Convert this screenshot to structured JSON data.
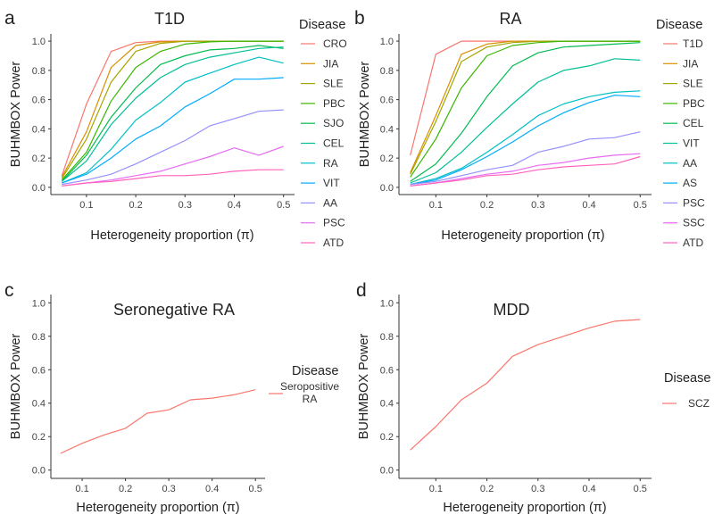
{
  "chart_data": [
    {
      "panel_letter": "a",
      "type": "line",
      "title": "T1D",
      "xlabel": "Heterogeneity proportion (π)",
      "ylabel": "BUHMBOX Power",
      "legend_title": "Disease",
      "legend_position": "right",
      "grid": false,
      "xlim": [
        0.05,
        0.5
      ],
      "ylim": [
        0,
        1
      ],
      "x_ticks": [
        "0.1",
        "0.2",
        "0.3",
        "0.4",
        "0.5"
      ],
      "y_ticks": [
        "0.0",
        "0.2",
        "0.4",
        "0.6",
        "0.8",
        "1.0"
      ],
      "x": [
        0.05,
        0.1,
        0.15,
        0.2,
        0.25,
        0.3,
        0.35,
        0.4,
        0.45,
        0.5
      ],
      "series": [
        {
          "name": "CRO",
          "color": "#F8766D",
          "values": [
            0.08,
            0.57,
            0.93,
            0.99,
            1.0,
            1.0,
            1.0,
            1.0,
            1.0,
            1.0
          ]
        },
        {
          "name": "JIA",
          "color": "#D89000",
          "values": [
            0.07,
            0.38,
            0.82,
            0.97,
            0.995,
            1.0,
            1.0,
            1.0,
            1.0,
            1.0
          ]
        },
        {
          "name": "SLE",
          "color": "#A3A500",
          "values": [
            0.06,
            0.33,
            0.72,
            0.93,
            0.985,
            1.0,
            1.0,
            1.0,
            1.0,
            1.0
          ]
        },
        {
          "name": "PBC",
          "color": "#39B600",
          "values": [
            0.05,
            0.24,
            0.59,
            0.82,
            0.93,
            0.98,
            0.995,
            1.0,
            1.0,
            1.0
          ]
        },
        {
          "name": "SJO",
          "color": "#00BB4E",
          "values": [
            0.04,
            0.22,
            0.48,
            0.68,
            0.84,
            0.9,
            0.94,
            0.95,
            0.97,
            0.95
          ]
        },
        {
          "name": "CEL",
          "color": "#00BF96",
          "values": [
            0.04,
            0.18,
            0.43,
            0.61,
            0.75,
            0.84,
            0.89,
            0.92,
            0.95,
            0.96
          ]
        },
        {
          "name": "RA",
          "color": "#00BFC4",
          "values": [
            0.03,
            0.1,
            0.26,
            0.46,
            0.58,
            0.72,
            0.78,
            0.84,
            0.89,
            0.85
          ]
        },
        {
          "name": "VIT",
          "color": "#00ABFD",
          "values": [
            0.03,
            0.09,
            0.2,
            0.33,
            0.42,
            0.55,
            0.64,
            0.74,
            0.74,
            0.75
          ]
        },
        {
          "name": "AA",
          "color": "#9590FF",
          "values": [
            0.02,
            0.05,
            0.09,
            0.16,
            0.24,
            0.32,
            0.42,
            0.47,
            0.52,
            0.53
          ]
        },
        {
          "name": "PSC",
          "color": "#E76BF3",
          "values": [
            0.01,
            0.03,
            0.05,
            0.08,
            0.11,
            0.16,
            0.21,
            0.27,
            0.22,
            0.28
          ]
        },
        {
          "name": "ATD",
          "color": "#FF62BC",
          "values": [
            0.01,
            0.03,
            0.04,
            0.06,
            0.08,
            0.08,
            0.09,
            0.11,
            0.12,
            0.12
          ]
        }
      ]
    },
    {
      "panel_letter": "b",
      "type": "line",
      "title": "RA",
      "xlabel": "Heterogeneity proportion (π)",
      "ylabel": "BUHMBOX Power",
      "legend_title": "Disease",
      "legend_position": "right",
      "grid": false,
      "xlim": [
        0.05,
        0.5
      ],
      "ylim": [
        0,
        1
      ],
      "x_ticks": [
        "0.1",
        "0.2",
        "0.3",
        "0.4",
        "0.5"
      ],
      "y_ticks": [
        "0.0",
        "0.2",
        "0.4",
        "0.6",
        "0.8",
        "1.0"
      ],
      "x": [
        0.05,
        0.1,
        0.15,
        0.2,
        0.25,
        0.3,
        0.35,
        0.4,
        0.45,
        0.5
      ],
      "series": [
        {
          "name": "T1D",
          "color": "#F8766D",
          "values": [
            0.22,
            0.91,
            1.0,
            1.0,
            1.0,
            1.0,
            1.0,
            1.0,
            1.0,
            1.0
          ]
        },
        {
          "name": "JIA",
          "color": "#D89000",
          "values": [
            0.1,
            0.49,
            0.91,
            0.98,
            1.0,
            1.0,
            1.0,
            1.0,
            1.0,
            1.0
          ]
        },
        {
          "name": "SLE",
          "color": "#A3A500",
          "values": [
            0.09,
            0.45,
            0.86,
            0.96,
            0.99,
            1.0,
            1.0,
            1.0,
            1.0,
            1.0
          ]
        },
        {
          "name": "PBC",
          "color": "#39B600",
          "values": [
            0.07,
            0.33,
            0.68,
            0.9,
            0.97,
            0.99,
            1.0,
            1.0,
            1.0,
            1.0
          ]
        },
        {
          "name": "CEL",
          "color": "#00BB4E",
          "values": [
            0.04,
            0.16,
            0.37,
            0.62,
            0.83,
            0.92,
            0.96,
            0.97,
            0.98,
            0.99
          ]
        },
        {
          "name": "VIT",
          "color": "#00BF96",
          "values": [
            0.03,
            0.1,
            0.24,
            0.41,
            0.57,
            0.72,
            0.8,
            0.83,
            0.88,
            0.87
          ]
        },
        {
          "name": "AA",
          "color": "#00BFC4",
          "values": [
            0.02,
            0.06,
            0.13,
            0.24,
            0.36,
            0.49,
            0.57,
            0.62,
            0.65,
            0.66
          ]
        },
        {
          "name": "AS",
          "color": "#00ABFD",
          "values": [
            0.02,
            0.05,
            0.12,
            0.21,
            0.31,
            0.42,
            0.51,
            0.58,
            0.63,
            0.62
          ]
        },
        {
          "name": "PSC",
          "color": "#9590FF",
          "values": [
            0.02,
            0.04,
            0.08,
            0.12,
            0.15,
            0.24,
            0.28,
            0.33,
            0.34,
            0.38
          ]
        },
        {
          "name": "SSC",
          "color": "#E76BF3",
          "values": [
            0.01,
            0.03,
            0.06,
            0.09,
            0.11,
            0.15,
            0.17,
            0.2,
            0.22,
            0.23
          ]
        },
        {
          "name": "ATD",
          "color": "#FF62BC",
          "values": [
            0.01,
            0.03,
            0.05,
            0.08,
            0.09,
            0.12,
            0.14,
            0.15,
            0.16,
            0.21
          ]
        }
      ]
    },
    {
      "panel_letter": "c",
      "type": "line",
      "title": "Seronegative RA",
      "xlabel": "Heterogeneity proportion (π)",
      "ylabel": "BUHMBOX Power",
      "legend_title": "Disease",
      "legend_position": "right",
      "grid": false,
      "xlim": [
        0.05,
        0.5
      ],
      "ylim": [
        0,
        1
      ],
      "x_ticks": [
        "0.1",
        "0.2",
        "0.3",
        "0.4",
        "0.5"
      ],
      "y_ticks": [
        "0.0",
        "0.2",
        "0.4",
        "0.6",
        "0.8",
        "1.0"
      ],
      "x": [
        0.05,
        0.1,
        0.15,
        0.2,
        0.25,
        0.3,
        0.35,
        0.4,
        0.45,
        0.5
      ],
      "series": [
        {
          "name": "Seropositive RA",
          "color": "#F8766D",
          "values": [
            0.1,
            0.16,
            0.21,
            0.25,
            0.34,
            0.36,
            0.42,
            0.43,
            0.45,
            0.48
          ]
        }
      ]
    },
    {
      "panel_letter": "d",
      "type": "line",
      "title": "MDD",
      "xlabel": "Heterogeneity proportion (π)",
      "ylabel": "BUHMBOX Power",
      "legend_title": "Disease",
      "legend_position": "right",
      "grid": false,
      "xlim": [
        0.05,
        0.5
      ],
      "ylim": [
        0,
        1
      ],
      "x_ticks": [
        "0.1",
        "0.2",
        "0.3",
        "0.4",
        "0.5"
      ],
      "y_ticks": [
        "0.0",
        "0.2",
        "0.4",
        "0.6",
        "0.8",
        "1.0"
      ],
      "x": [
        0.05,
        0.1,
        0.15,
        0.2,
        0.25,
        0.3,
        0.35,
        0.4,
        0.45,
        0.5
      ],
      "series": [
        {
          "name": "SCZ",
          "color": "#F8766D",
          "values": [
            0.12,
            0.26,
            0.42,
            0.52,
            0.68,
            0.75,
            0.8,
            0.85,
            0.89,
            0.9
          ]
        }
      ]
    }
  ]
}
